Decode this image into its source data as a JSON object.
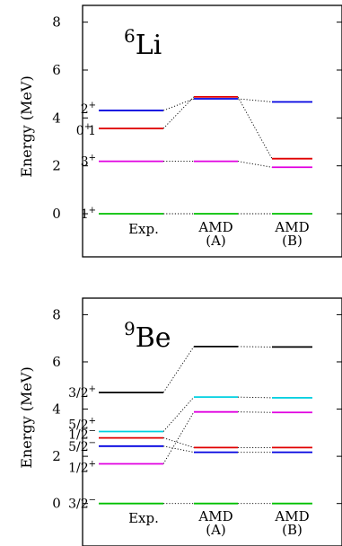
{
  "chart_data": [
    {
      "type": "level-scheme",
      "nucleus": {
        "mass": "6",
        "symbol": "Li"
      },
      "ylabel": "Energy (MeV)",
      "ylim": [
        -1.8,
        8.7
      ],
      "yticks": [
        0,
        2,
        4,
        6,
        8
      ],
      "columns": [
        {
          "id": "exp",
          "label_lines": [
            "Exp."
          ]
        },
        {
          "id": "amdA",
          "label_lines": [
            "AMD",
            "(A)"
          ]
        },
        {
          "id": "amdB",
          "label_lines": [
            "AMD",
            "(B)"
          ]
        }
      ],
      "levels": [
        {
          "name": "1+",
          "color": "#00c000",
          "energies": [
            0.0,
            0.0,
            0.0
          ],
          "label": {
            "base": "1",
            "sup": "+"
          }
        },
        {
          "name": "3+",
          "color": "#e000e0",
          "energies": [
            2.19,
            2.19,
            1.94
          ],
          "label": {
            "base": "3",
            "sup": "+"
          }
        },
        {
          "name": "0+1",
          "color": "#e00000",
          "energies": [
            3.56,
            4.88,
            2.3
          ],
          "label": {
            "base": "0",
            "sup": "+",
            "tail": "1"
          }
        },
        {
          "name": "2+",
          "color": "#0000e0",
          "energies": [
            4.31,
            4.8,
            4.67
          ],
          "label": {
            "base": "2",
            "sup": "+"
          }
        }
      ]
    },
    {
      "type": "level-scheme",
      "nucleus": {
        "mass": "9",
        "symbol": "Be"
      },
      "ylabel": "Energy (MeV)",
      "ylim": [
        -1.8,
        8.7
      ],
      "yticks": [
        0,
        2,
        4,
        6,
        8
      ],
      "columns": [
        {
          "id": "exp",
          "label_lines": [
            "Exp."
          ]
        },
        {
          "id": "amdA",
          "label_lines": [
            "AMD",
            "(A)"
          ]
        },
        {
          "id": "amdB",
          "label_lines": [
            "AMD",
            "(B)"
          ]
        }
      ],
      "levels": [
        {
          "name": "3/2-",
          "color": "#00c000",
          "energies": [
            0.0,
            0.0,
            0.0
          ],
          "label": {
            "base": "3/2",
            "sup": "−"
          }
        },
        {
          "name": "1/2+",
          "color": "#e000e0",
          "energies": [
            1.68,
            3.88,
            3.86
          ],
          "label": {
            "base": "1/2",
            "sup": "+"
          }
        },
        {
          "name": "5/2-",
          "color": "#0000e0",
          "energies": [
            2.43,
            2.17,
            2.17
          ],
          "label": {
            "base": "5/2",
            "sup": "−"
          }
        },
        {
          "name": "1/2-",
          "color": "#e00000",
          "energies": [
            2.78,
            2.37,
            2.37
          ],
          "label": {
            "base": "1/2",
            "sup": "−"
          }
        },
        {
          "name": "5/2+",
          "color": "#00d0e0",
          "energies": [
            3.05,
            4.51,
            4.48
          ],
          "label": {
            "base": "5/2",
            "sup": "+"
          }
        },
        {
          "name": "3/2+",
          "color": "#000000",
          "energies": [
            4.7,
            6.65,
            6.63
          ],
          "label": {
            "base": "3/2",
            "sup": "+"
          }
        }
      ]
    }
  ]
}
